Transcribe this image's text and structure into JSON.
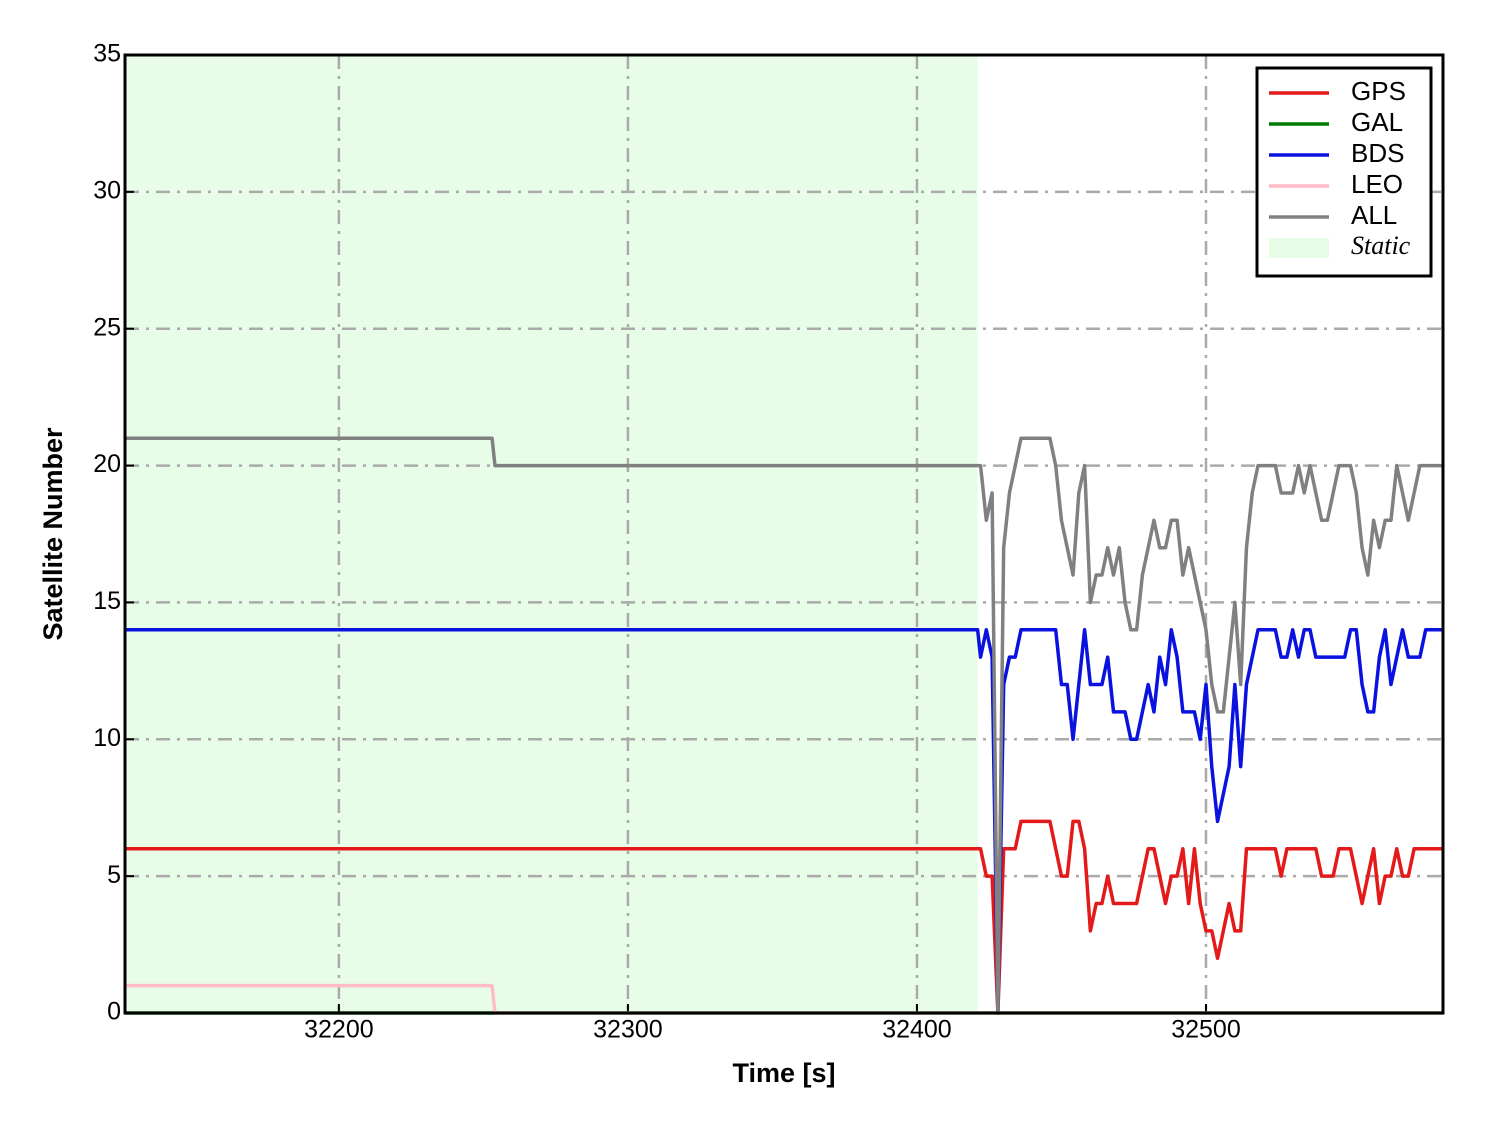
{
  "chart_data": {
    "type": "line",
    "xlabel": "Time [s]",
    "ylabel": "Satellite Number",
    "xlim": [
      32126,
      32582
    ],
    "ylim": [
      0,
      35
    ],
    "xticks": [
      32200,
      32300,
      32400,
      32500
    ],
    "yticks": [
      0,
      5,
      10,
      15,
      20,
      25,
      30,
      35
    ],
    "grid": true,
    "legend": "upper right",
    "shade": {
      "name": "Static",
      "color": "#e8fde8",
      "span": [
        32126,
        32421
      ]
    },
    "x": [
      32126,
      32253,
      32254,
      32421,
      32422,
      32424,
      32426,
      32428,
      32430,
      32432,
      32434,
      32436,
      32438,
      32440,
      32442,
      32444,
      32446,
      32448,
      32450,
      32452,
      32454,
      32456,
      32458,
      32460,
      32462,
      32464,
      32466,
      32468,
      32470,
      32472,
      32474,
      32476,
      32478,
      32480,
      32482,
      32484,
      32486,
      32488,
      32490,
      32492,
      32494,
      32496,
      32498,
      32500,
      32502,
      32504,
      32506,
      32508,
      32510,
      32512,
      32514,
      32516,
      32518,
      32520,
      32522,
      32524,
      32526,
      32528,
      32530,
      32532,
      32534,
      32536,
      32538,
      32540,
      32542,
      32544,
      32546,
      32548,
      32550,
      32552,
      32554,
      32556,
      32558,
      32560,
      32562,
      32564,
      32566,
      32568,
      32570,
      32572,
      32574,
      32576,
      32578,
      32580,
      32582
    ],
    "series": [
      {
        "name": "GPS",
        "color": "#e41a1a",
        "values": [
          6,
          6,
          6,
          6,
          6,
          5,
          5,
          0,
          6,
          6,
          6,
          7,
          7,
          7,
          7,
          7,
          7,
          6,
          5,
          5,
          7,
          7,
          6,
          3,
          4,
          4,
          5,
          4,
          4,
          4,
          4,
          4,
          5,
          6,
          6,
          5,
          4,
          5,
          5,
          6,
          4,
          6,
          4,
          3,
          3,
          2,
          3,
          4,
          3,
          3,
          6,
          6,
          6,
          6,
          6,
          6,
          5,
          6,
          6,
          6,
          6,
          6,
          6,
          5,
          5,
          5,
          6,
          6,
          6,
          5,
          4,
          5,
          6,
          4,
          5,
          5,
          6,
          5,
          5,
          6,
          6,
          6,
          6,
          6,
          6
        ]
      },
      {
        "name": "GAL",
        "color": "#007a00",
        "values": [
          0,
          0,
          0,
          0,
          0,
          0,
          0,
          0,
          0,
          0,
          0,
          0,
          0,
          0,
          0,
          0,
          0,
          0,
          0,
          0,
          0,
          0,
          0,
          0,
          0,
          0,
          0,
          0,
          0,
          0,
          0,
          0,
          0,
          0,
          0,
          0,
          0,
          0,
          0,
          0,
          0,
          0,
          0,
          0,
          0,
          0,
          0,
          0,
          0,
          0,
          0,
          0,
          0,
          0,
          0,
          0,
          0,
          0,
          0,
          0,
          0,
          0,
          0,
          0,
          0,
          0,
          0,
          0,
          0,
          0,
          0,
          0,
          0,
          0,
          0,
          0,
          0,
          0,
          0,
          0,
          0,
          0,
          0,
          0,
          0
        ]
      },
      {
        "name": "BDS",
        "color": "#0a12e0",
        "values": [
          14,
          14,
          14,
          14,
          13,
          14,
          13,
          0,
          12,
          13,
          13,
          14,
          14,
          14,
          14,
          14,
          14,
          14,
          12,
          12,
          10,
          12,
          14,
          12,
          12,
          12,
          13,
          11,
          11,
          11,
          10,
          10,
          11,
          12,
          11,
          13,
          12,
          14,
          13,
          11,
          11,
          11,
          10,
          12,
          9,
          7,
          8,
          9,
          12,
          9,
          12,
          13,
          14,
          14,
          14,
          14,
          13,
          13,
          14,
          13,
          14,
          14,
          13,
          13,
          13,
          13,
          13,
          13,
          14,
          14,
          12,
          11,
          11,
          13,
          14,
          12,
          13,
          14,
          13,
          13,
          13,
          14,
          14,
          14,
          14
        ]
      },
      {
        "name": "LEO",
        "color": "#ffbcc6",
        "values": [
          1,
          1,
          0,
          0,
          0,
          0,
          0,
          0,
          0,
          0,
          0,
          0,
          0,
          0,
          0,
          0,
          0,
          0,
          0,
          0,
          0,
          0,
          0,
          0,
          0,
          0,
          0,
          0,
          0,
          0,
          0,
          0,
          0,
          0,
          0,
          0,
          0,
          0,
          0,
          0,
          0,
          0,
          0,
          0,
          0,
          0,
          0,
          0,
          0,
          0,
          0,
          0,
          0,
          0,
          0,
          0,
          0,
          0,
          0,
          0,
          0,
          0,
          0,
          0,
          0,
          0,
          0,
          0,
          0,
          0,
          0,
          0,
          0,
          0,
          0,
          0,
          0,
          0,
          0,
          0,
          0,
          0,
          0,
          0,
          0
        ]
      },
      {
        "name": "ALL",
        "color": "#808080",
        "values": [
          21,
          21,
          20,
          20,
          20,
          18,
          19,
          0,
          17,
          19,
          20,
          21,
          21,
          21,
          21,
          21,
          21,
          20,
          18,
          17,
          16,
          19,
          20,
          15,
          16,
          16,
          17,
          16,
          17,
          15,
          14,
          14,
          16,
          17,
          18,
          17,
          17,
          18,
          18,
          16,
          17,
          16,
          15,
          14,
          12,
          11,
          11,
          13,
          15,
          12,
          17,
          19,
          20,
          20,
          20,
          20,
          19,
          19,
          19,
          20,
          19,
          20,
          19,
          18,
          18,
          19,
          20,
          20,
          20,
          19,
          17,
          16,
          18,
          17,
          18,
          18,
          20,
          19,
          18,
          19,
          20,
          20,
          20,
          20,
          20
        ]
      }
    ]
  }
}
